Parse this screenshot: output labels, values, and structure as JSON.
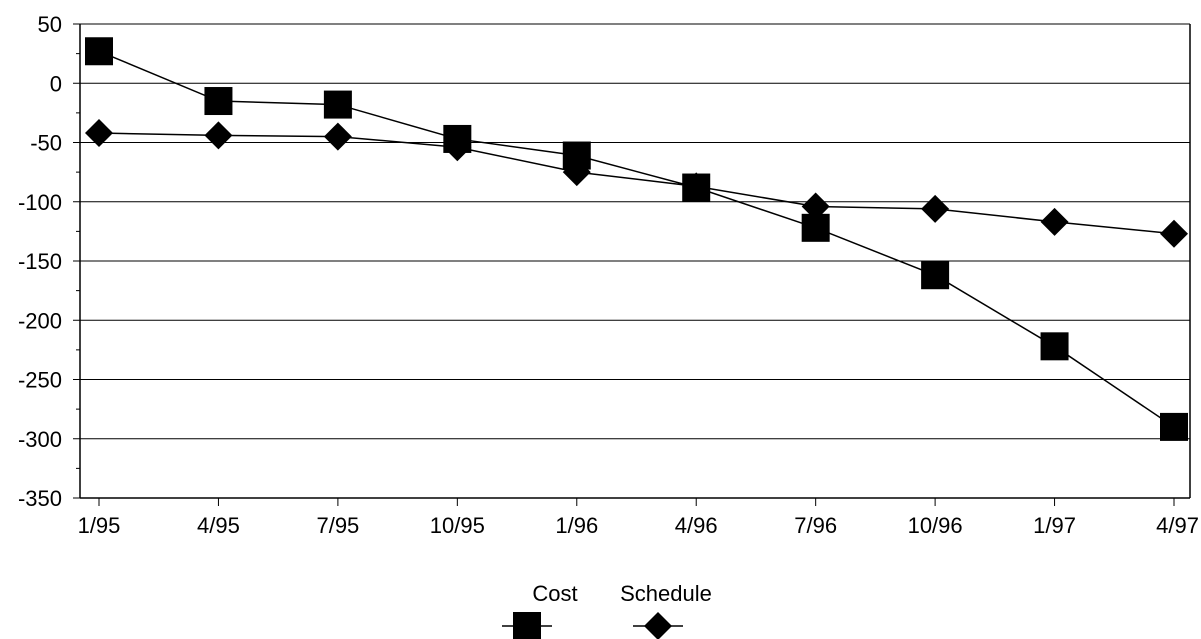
{
  "chart_data": {
    "type": "line",
    "title": "",
    "xlabel": "",
    "ylabel": "",
    "categories": [
      "1/95",
      "4/95",
      "7/95",
      "10/95",
      "1/96",
      "4/96",
      "7/96",
      "10/96",
      "1/97",
      "4/97"
    ],
    "ylim": [
      -350,
      50
    ],
    "yticks": [
      50,
      0,
      -50,
      -100,
      -150,
      -200,
      -250,
      -300,
      -350
    ],
    "ytick_labels": [
      "50",
      "0",
      "-50",
      "-100",
      "-150",
      "-200",
      "-250",
      "-300",
      "-350"
    ],
    "grid": "horizontal",
    "legend_position": "bottom-center",
    "series": [
      {
        "name": "Cost",
        "marker": "square",
        "color": "#000000",
        "values": [
          27,
          -15,
          -18,
          -47,
          -61,
          -88,
          -122,
          -162,
          -222,
          -290
        ]
      },
      {
        "name": "Schedule",
        "marker": "diamond",
        "color": "#000000",
        "values": [
          -42,
          -44,
          -45,
          -54,
          -75,
          -87,
          -104,
          -106,
          -117,
          -127
        ]
      }
    ]
  }
}
